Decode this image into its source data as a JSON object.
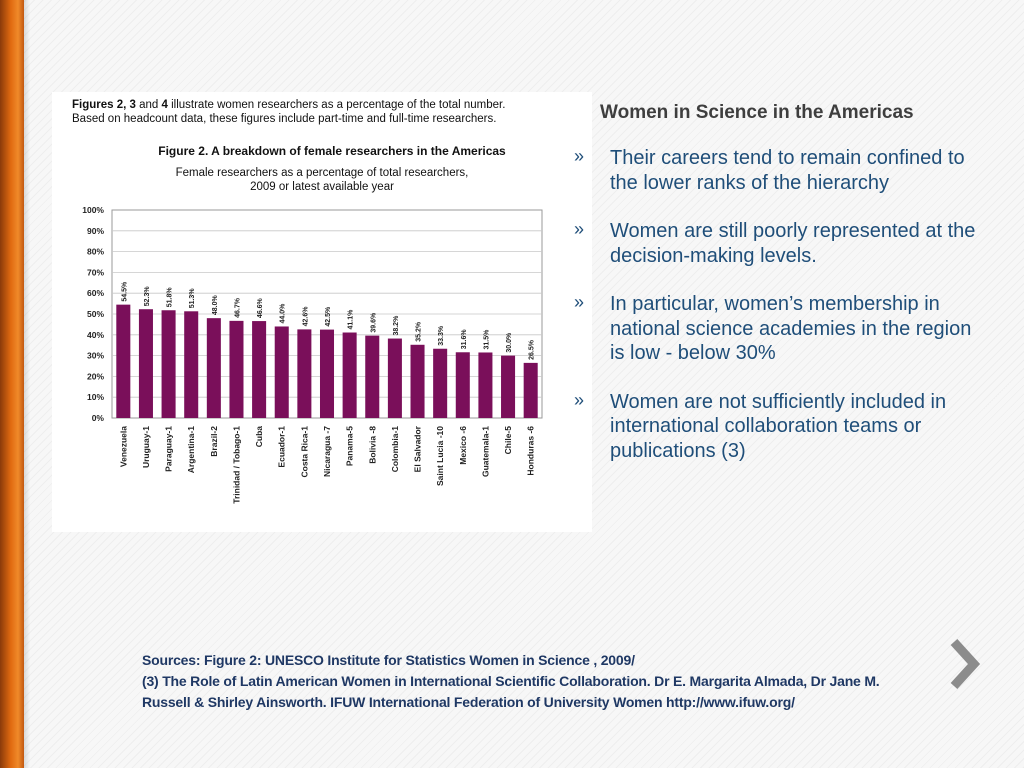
{
  "figure": {
    "intro_bold_1": "Figures 2, 3",
    "intro_mid": " and ",
    "intro_bold_2": "4",
    "intro_rest_line1": " illustrate women researchers as a percentage of the total number.",
    "intro_line2": "Based on headcount data, these figures include part-time and full-time researchers.",
    "title": "Figure 2.  A breakdown of female researchers in the Americas",
    "subtitle_line1": "Female researchers as a percentage of total researchers,",
    "subtitle_line2": "2009 or latest available year"
  },
  "chart_data": {
    "type": "bar",
    "categories": [
      "Venezuela",
      "Uruguay-1",
      "Paraguay-1",
      "Argentina-1",
      "Brazil-2",
      "Trinidad / Tobago-1",
      "Cuba",
      "Ecuador-1",
      "Costa Rica-1",
      "Nicaragua -7",
      "Panama-5",
      "Bolivia -8",
      "Colombia-1",
      "El Salvador",
      "Saint Lucia -10",
      "Mexico -6",
      "Guatemala-1",
      "Chile-5",
      "Honduras -6"
    ],
    "values": [
      54.5,
      52.3,
      51.8,
      51.3,
      48.0,
      46.7,
      46.6,
      44.0,
      42.6,
      42.5,
      41.1,
      39.6,
      38.2,
      35.2,
      33.3,
      31.6,
      31.5,
      30.0,
      26.5
    ],
    "value_labels": [
      "54.5%",
      "52.3%",
      "51.8%",
      "51.3%",
      "48.0%",
      "46.7%",
      "46.6%",
      "44.0%",
      "42.6%",
      "42.5%",
      "41.1%",
      "39.6%",
      "38.2%",
      "35.2%",
      "33.3%",
      "31.6%",
      "31.5%",
      "30.0%",
      "26.5%"
    ],
    "y_ticks": [
      "0%",
      "10%",
      "20%",
      "30%",
      "40%",
      "50%",
      "60%",
      "70%",
      "80%",
      "90%",
      "100%"
    ],
    "ylim": [
      0,
      100
    ],
    "grid": true,
    "bar_color": "#7a0f5a"
  },
  "slide": {
    "title": "Women in Science in the Americas",
    "bullet_marker": "»",
    "bullets": [
      "Their careers tend to remain confined to the lower ranks of the hierarchy",
      "Women are still poorly represented at the decision-making levels.",
      "In particular, women’s membership in national science academies in the region is low - below 30%",
      "Women are not sufficiently included in international collaboration teams or publications (3)"
    ],
    "text_color": "#1f4e79"
  },
  "sources": {
    "line1": "Sources:  Figure 2: UNESCO Institute for Statistics Women in Science , 2009/",
    "line2": "(3) The Role of Latin American Women in International Scientific Collaboration. Dr E. Margarita Almada, Dr Jane M.",
    "line3": "Russell & Shirley Ainsworth. IFUW International Federation of University Women http://www.ifuw.org/"
  },
  "nav": {
    "next_icon": "chevron-right-icon"
  }
}
